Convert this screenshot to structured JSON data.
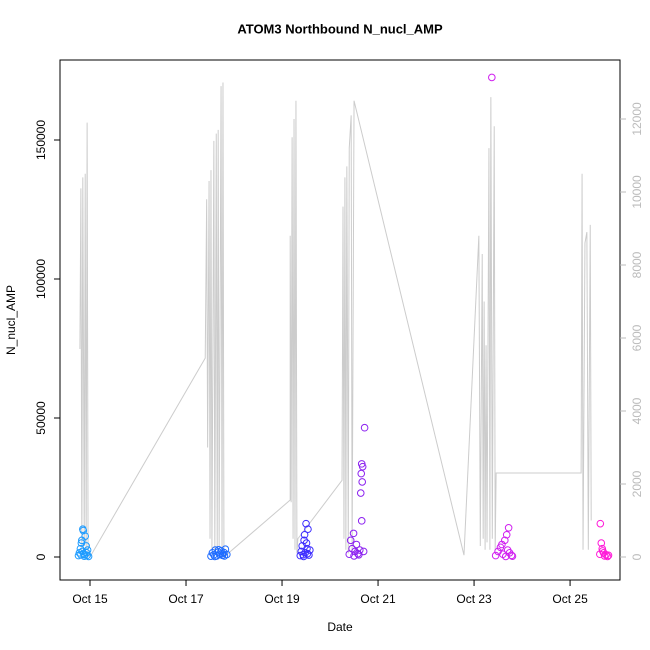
{
  "chart_data": {
    "type": "scatter",
    "title": "ATOM3 Northbound N_nucl_AMP",
    "x_label": "Date",
    "y_label": "N_nucl_AMP",
    "xlim": [
      14.375,
      26.04
    ],
    "ylim": [
      -8273,
      178777
    ],
    "y2lim": [
      -630,
      13616
    ],
    "xticks": [
      {
        "value": 15,
        "label": "Oct 15"
      },
      {
        "value": 17,
        "label": "Oct 17"
      },
      {
        "value": 19,
        "label": "Oct 19"
      },
      {
        "value": 21,
        "label": "Oct 21"
      },
      {
        "value": 23,
        "label": "Oct 23"
      },
      {
        "value": 25,
        "label": "Oct 25"
      }
    ],
    "yticks": [
      0,
      50000,
      100000,
      150000
    ],
    "y2ticks": [
      0,
      2000,
      4000,
      6000,
      8000,
      10000,
      12000
    ],
    "series": [
      {
        "type": "line",
        "axis": "y2",
        "color": "#cccccc",
        "x": [
          14.79,
          14.81,
          14.83,
          14.85,
          14.88,
          14.9,
          14.92,
          14.94,
          14.96,
          14.98,
          15.0,
          17.4,
          17.43,
          17.45,
          17.48,
          17.5,
          17.52,
          17.54,
          17.58,
          17.6,
          17.63,
          17.65,
          17.67,
          17.69,
          17.73,
          17.75,
          17.77,
          17.79,
          19.17,
          19.17,
          19.19,
          19.21,
          19.23,
          19.25,
          19.27,
          19.29,
          19.31,
          19.33,
          20.25,
          20.27,
          20.29,
          20.31,
          20.33,
          20.35,
          20.38,
          20.4,
          20.44,
          20.46,
          20.5,
          22.79,
          23.1,
          23.13,
          23.17,
          23.19,
          23.21,
          23.23,
          23.25,
          23.27,
          23.31,
          23.33,
          23.35,
          23.38,
          23.42,
          23.44,
          23.46,
          25.23,
          25.25,
          25.27,
          25.31,
          25.35,
          25.38,
          25.42,
          25.44
        ],
        "values": [
          5700,
          10100,
          200,
          10400,
          300,
          10500,
          200,
          11900,
          0,
          100,
          0,
          5450,
          9800,
          3000,
          10300,
          500,
          10600,
          200,
          11400,
          100,
          11600,
          200,
          11700,
          300,
          12900,
          100,
          13000,
          0,
          1560,
          8800,
          1500,
          11500,
          500,
          12000,
          200,
          12500,
          100,
          500,
          2100,
          9600,
          500,
          10400,
          200,
          10700,
          100,
          11200,
          12100,
          100,
          12500,
          50,
          8800,
          300,
          8300,
          500,
          7000,
          200,
          5800,
          400,
          11200,
          200,
          12600,
          500,
          11800,
          200,
          2300,
          2300,
          10500,
          200,
          8600,
          8900,
          200,
          9100,
          1000
        ]
      },
      {
        "color": "#1e9cff",
        "x": [
          14.76,
          14.78,
          14.8,
          14.81,
          14.83,
          14.84,
          14.86,
          14.87,
          14.88,
          14.9,
          14.92,
          14.94,
          14.95,
          14.97,
          14.82,
          14.85,
          14.89,
          14.93
        ],
        "values": [
          500,
          1500,
          3000,
          800,
          6000,
          2000,
          9500,
          1200,
          300,
          7500,
          4000,
          600,
          2500,
          200,
          5000,
          10000,
          800,
          1500
        ]
      },
      {
        "color": "#1f6cff",
        "x": [
          17.52,
          17.55,
          17.58,
          17.61,
          17.64,
          17.67,
          17.7,
          17.73,
          17.76,
          17.79,
          17.82,
          17.85,
          17.6,
          17.68,
          17.75,
          17.8
        ],
        "values": [
          300,
          1500,
          800,
          2500,
          400,
          1800,
          1000,
          2200,
          600,
          1600,
          2800,
          900,
          200,
          2600,
          1200,
          400
        ]
      },
      {
        "color": "#3c2cff",
        "x": [
          19.38,
          19.4,
          19.42,
          19.44,
          19.46,
          19.48,
          19.5,
          19.52,
          19.54,
          19.56,
          19.58,
          19.47,
          19.51,
          19.53,
          19.45
        ],
        "values": [
          500,
          2000,
          4000,
          800,
          6000,
          1500,
          12000,
          3000,
          10000,
          700,
          2500,
          8000,
          5000,
          1200,
          200
        ]
      },
      {
        "color": "#8c22f0",
        "x": [
          20.4,
          20.43,
          20.46,
          20.49,
          20.52,
          20.55,
          20.58,
          20.62,
          20.64,
          20.65,
          20.66,
          20.66,
          20.67,
          20.68,
          20.72,
          20.7,
          20.6,
          20.5
        ],
        "values": [
          1000,
          6000,
          3000,
          8500,
          2000,
          4500,
          1200,
          2500,
          23000,
          30000,
          33500,
          13000,
          27000,
          32500,
          46500,
          2000,
          800,
          400
        ]
      },
      {
        "color": "#d020f0",
        "x": [
          23.37,
          23.45,
          23.5,
          23.55,
          23.6,
          23.64,
          23.68,
          23.7,
          23.72,
          23.74,
          23.78,
          23.8,
          23.58,
          23.66
        ],
        "values": [
          172500,
          500,
          2000,
          3500,
          1000,
          6000,
          8000,
          2500,
          10500,
          1500,
          600,
          300,
          4500,
          200
        ]
      },
      {
        "color": "#ff18d8",
        "x": [
          25.62,
          25.63,
          25.65,
          25.67,
          25.7,
          25.72,
          25.75,
          25.78,
          25.8,
          25.68
        ],
        "values": [
          1000,
          12000,
          5000,
          3000,
          1500,
          400,
          800,
          200,
          600,
          2200
        ]
      }
    ]
  }
}
